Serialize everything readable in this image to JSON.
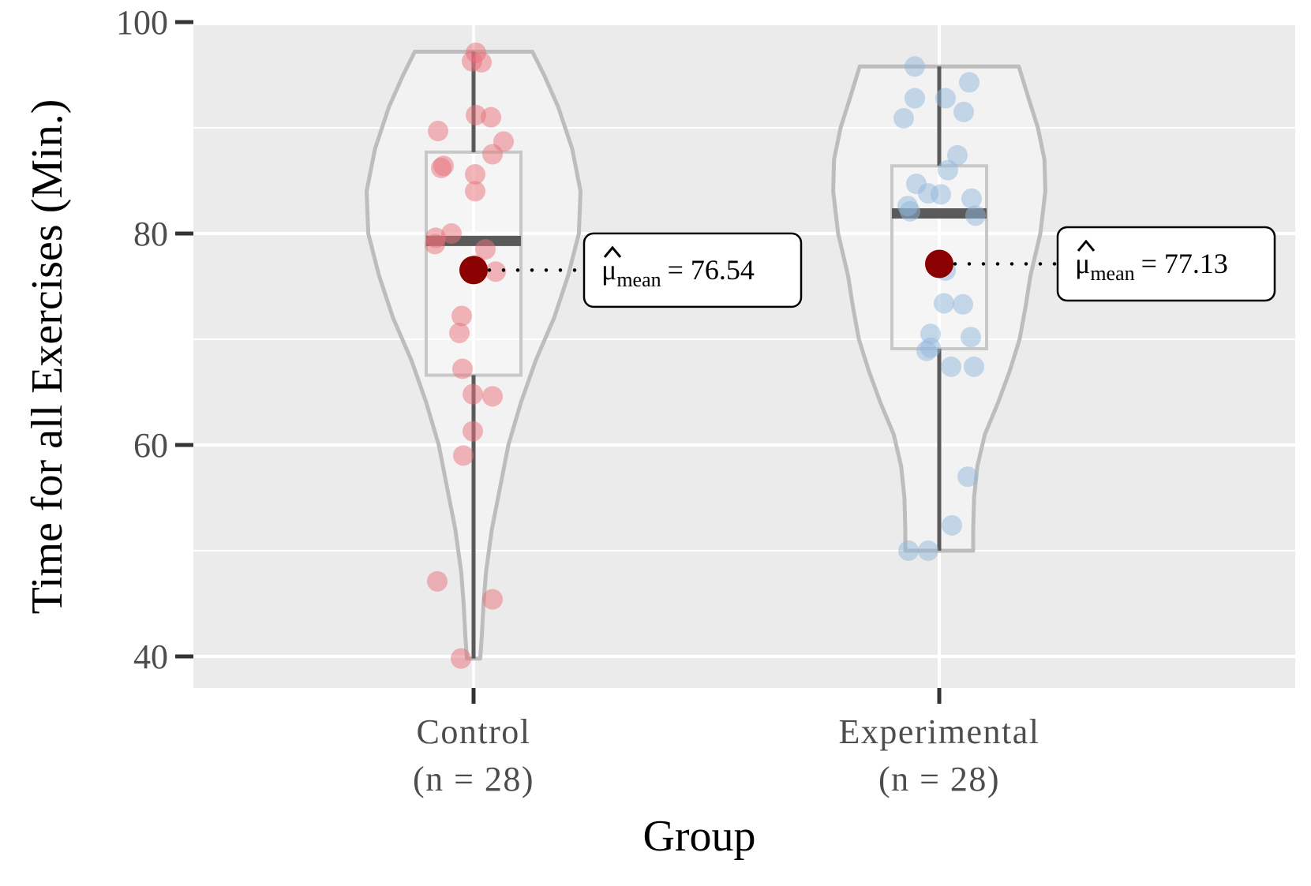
{
  "chart_data": {
    "type": "violin",
    "title": "",
    "xlabel": "Group",
    "ylabel": "Time for all Exercises (Min.)",
    "ylim": [
      36,
      101
    ],
    "yticks": [
      40,
      60,
      80,
      100
    ],
    "grid": true,
    "groups": [
      {
        "name": "Control",
        "n_label": "(n =  28)",
        "color": "#e8707a",
        "box": {
          "min": 39.8,
          "q1": 66.6,
          "median": 79.3,
          "q3": 87.7,
          "max": 97.2
        },
        "mean": 76.54,
        "mean_label": "= 76.54",
        "points": [
          [
            0.03,
            97.1
          ],
          [
            -0.02,
            96.3
          ],
          [
            0.1,
            96.2
          ],
          [
            0.03,
            91.2
          ],
          [
            0.22,
            91.0
          ],
          [
            -0.45,
            89.7
          ],
          [
            0.38,
            88.7
          ],
          [
            0.24,
            87.5
          ],
          [
            -0.38,
            86.4
          ],
          [
            -0.41,
            86.2
          ],
          [
            0.02,
            85.6
          ],
          [
            0.02,
            84.0
          ],
          [
            -0.28,
            80.0
          ],
          [
            -0.48,
            79.6
          ],
          [
            -0.49,
            79.0
          ],
          [
            0.15,
            78.5
          ],
          [
            0.03,
            77.0
          ],
          [
            0.28,
            76.4
          ],
          [
            -0.15,
            72.2
          ],
          [
            -0.18,
            70.6
          ],
          [
            -0.14,
            67.2
          ],
          [
            -0.01,
            64.8
          ],
          [
            0.24,
            64.6
          ],
          [
            -0.01,
            61.3
          ],
          [
            -0.13,
            59.0
          ],
          [
            -0.46,
            47.1
          ],
          [
            0.24,
            45.4
          ],
          [
            -0.16,
            39.8
          ]
        ],
        "violin_profile": [
          [
            39.8,
            0.08
          ],
          [
            42,
            0.1
          ],
          [
            45,
            0.12
          ],
          [
            48,
            0.15
          ],
          [
            52,
            0.22
          ],
          [
            56,
            0.32
          ],
          [
            60,
            0.42
          ],
          [
            64,
            0.57
          ],
          [
            68,
            0.75
          ],
          [
            72,
            0.97
          ],
          [
            76,
            1.14
          ],
          [
            80,
            1.27
          ],
          [
            84,
            1.29
          ],
          [
            88,
            1.19
          ],
          [
            92,
            1.02
          ],
          [
            95,
            0.85
          ],
          [
            97.2,
            0.71
          ]
        ]
      },
      {
        "name": "Experimental",
        "n_label": "(n =  28)",
        "color": "#8fb7db",
        "box": {
          "min": 50.0,
          "q1": 69.1,
          "median": 81.9,
          "q3": 86.4,
          "max": 95.8
        },
        "mean": 77.13,
        "mean_label": "= 77.13",
        "points": [
          [
            -0.31,
            95.8
          ],
          [
            0.38,
            94.3
          ],
          [
            -0.31,
            92.8
          ],
          [
            0.08,
            92.8
          ],
          [
            0.31,
            91.5
          ],
          [
            -0.45,
            90.9
          ],
          [
            0.23,
            87.4
          ],
          [
            0.11,
            86.0
          ],
          [
            -0.29,
            84.7
          ],
          [
            -0.14,
            83.8
          ],
          [
            0.02,
            83.7
          ],
          [
            0.41,
            83.3
          ],
          [
            -0.4,
            82.6
          ],
          [
            -0.37,
            82.1
          ],
          [
            0.46,
            81.7
          ],
          [
            0.08,
            76.5
          ],
          [
            0.06,
            73.4
          ],
          [
            0.3,
            73.3
          ],
          [
            -0.11,
            70.5
          ],
          [
            0.4,
            70.2
          ],
          [
            -0.11,
            69.2
          ],
          [
            -0.16,
            68.9
          ],
          [
            0.15,
            67.4
          ],
          [
            0.44,
            67.4
          ],
          [
            0.36,
            57.0
          ],
          [
            0.16,
            52.4
          ],
          [
            -0.39,
            50.0
          ],
          [
            -0.14,
            50.0
          ]
        ],
        "violin_profile": [
          [
            50.0,
            0.41
          ],
          [
            52,
            0.41
          ],
          [
            55,
            0.42
          ],
          [
            58,
            0.46
          ],
          [
            61,
            0.55
          ],
          [
            64,
            0.71
          ],
          [
            67,
            0.85
          ],
          [
            70,
            0.97
          ],
          [
            73,
            1.04
          ],
          [
            76,
            1.1
          ],
          [
            80,
            1.22
          ],
          [
            84,
            1.28
          ],
          [
            87,
            1.27
          ],
          [
            90,
            1.19
          ],
          [
            93,
            1.07
          ],
          [
            95.8,
            0.96
          ]
        ]
      }
    ],
    "annotations": [
      {
        "group": "Control",
        "symbol": "μ",
        "subscript": "mean",
        "text": "= 76.54"
      },
      {
        "group": "Experimental",
        "symbol": "μ",
        "subscript": "mean",
        "text": "= 77.13"
      }
    ]
  }
}
